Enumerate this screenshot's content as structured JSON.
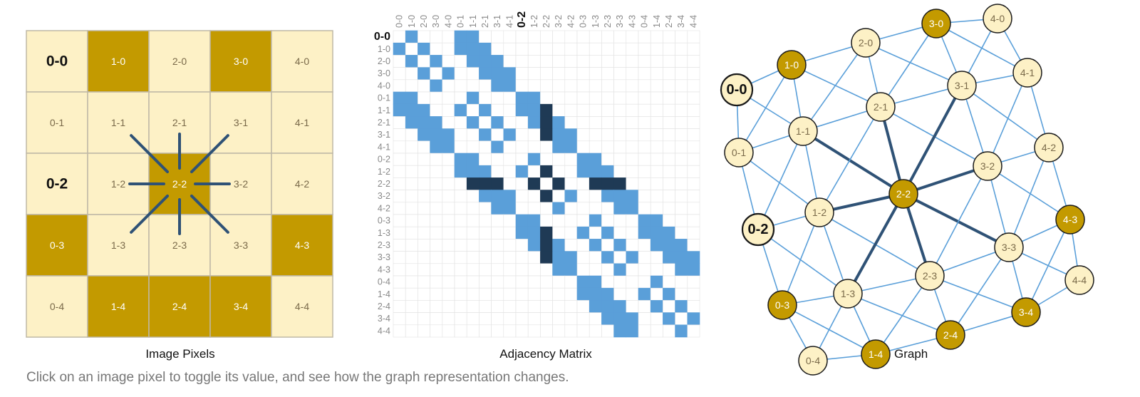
{
  "colors": {
    "pixel_off": "#fdf1c6",
    "pixel_on": "#c39a00",
    "grid_border": "#bfb8a6",
    "matrix_fill": "#5a9fd9",
    "matrix_dark": "#1f3a55",
    "graph_edge": "#5a9fd9",
    "graph_edge_dark": "#2f5276",
    "text_on": "#ffffff",
    "text_off": "#7a6a4a",
    "text_bold": "#111111"
  },
  "image_pixels": {
    "caption": "Image Pixels",
    "selected": "2-2",
    "rows": [
      [
        {
          "label": "0-0",
          "on": false,
          "bold": true
        },
        {
          "label": "1-0",
          "on": true
        },
        {
          "label": "2-0",
          "on": false
        },
        {
          "label": "3-0",
          "on": true
        },
        {
          "label": "4-0",
          "on": false
        }
      ],
      [
        {
          "label": "0-1",
          "on": false
        },
        {
          "label": "1-1",
          "on": false
        },
        {
          "label": "2-1",
          "on": false
        },
        {
          "label": "3-1",
          "on": false
        },
        {
          "label": "4-1",
          "on": false
        }
      ],
      [
        {
          "label": "0-2",
          "on": false,
          "bold": true
        },
        {
          "label": "1-2",
          "on": false
        },
        {
          "label": "2-2",
          "on": true
        },
        {
          "label": "3-2",
          "on": false
        },
        {
          "label": "4-2",
          "on": false
        }
      ],
      [
        {
          "label": "0-3",
          "on": true
        },
        {
          "label": "1-3",
          "on": false
        },
        {
          "label": "2-3",
          "on": false
        },
        {
          "label": "3-3",
          "on": false
        },
        {
          "label": "4-3",
          "on": true
        }
      ],
      [
        {
          "label": "0-4",
          "on": false
        },
        {
          "label": "1-4",
          "on": true
        },
        {
          "label": "2-4",
          "on": true
        },
        {
          "label": "3-4",
          "on": true
        },
        {
          "label": "4-4",
          "on": false
        }
      ]
    ]
  },
  "adjacency_matrix": {
    "caption": "Adjacency Matrix",
    "labels": [
      "0-0",
      "1-0",
      "2-0",
      "3-0",
      "4-0",
      "0-1",
      "1-1",
      "2-1",
      "3-1",
      "4-1",
      "0-2",
      "1-2",
      "2-2",
      "3-2",
      "4-2",
      "0-3",
      "1-3",
      "2-3",
      "3-3",
      "4-3",
      "0-4",
      "1-4",
      "2-4",
      "3-4",
      "4-4"
    ],
    "bold_row_labels": [
      "0-0"
    ],
    "bold_col_labels": [
      "0-2"
    ]
  },
  "graph": {
    "caption": "Graph",
    "nodes": [
      {
        "label": "0-0",
        "on": false,
        "bold": true
      },
      {
        "label": "1-0",
        "on": true
      },
      {
        "label": "2-0",
        "on": false
      },
      {
        "label": "3-0",
        "on": true
      },
      {
        "label": "4-0",
        "on": false
      },
      {
        "label": "0-1",
        "on": false
      },
      {
        "label": "1-1",
        "on": false
      },
      {
        "label": "2-1",
        "on": false
      },
      {
        "label": "3-1",
        "on": false
      },
      {
        "label": "4-1",
        "on": false
      },
      {
        "label": "0-2",
        "on": false,
        "bold": true
      },
      {
        "label": "1-2",
        "on": false
      },
      {
        "label": "2-2",
        "on": true
      },
      {
        "label": "3-2",
        "on": false
      },
      {
        "label": "4-2",
        "on": false
      },
      {
        "label": "0-3",
        "on": true
      },
      {
        "label": "1-3",
        "on": false
      },
      {
        "label": "2-3",
        "on": false
      },
      {
        "label": "3-3",
        "on": false
      },
      {
        "label": "4-3",
        "on": true
      },
      {
        "label": "0-4",
        "on": false
      },
      {
        "label": "1-4",
        "on": true
      },
      {
        "label": "2-4",
        "on": true
      },
      {
        "label": "3-4",
        "on": true
      },
      {
        "label": "4-4",
        "on": false
      }
    ]
  },
  "footer_text": "Click on an image pixel to toggle its value, and see how the graph representation changes."
}
